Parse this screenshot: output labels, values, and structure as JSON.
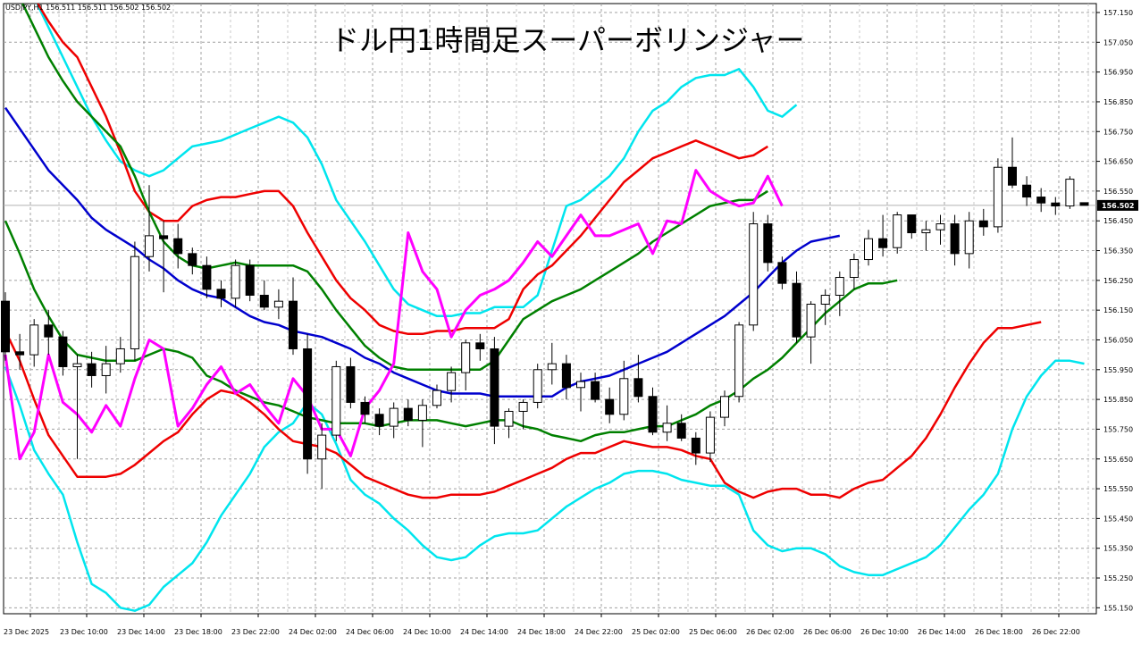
{
  "header": {
    "symbol_line": "USDJPY,H1  156.511 156.511 156.502 156.502"
  },
  "chart_data": {
    "type": "candlestick",
    "title": "ドル円1時間足スーパーボリンジャー",
    "symbol": "USDJPY",
    "timeframe": "H1",
    "current_price_label": "156.502",
    "ylim": [
      155.13,
      157.18
    ],
    "grid": true,
    "y_ticks": [
      "157.150",
      "157.050",
      "156.950",
      "156.850",
      "156.750",
      "156.650",
      "156.550",
      "156.450",
      "156.350",
      "156.250",
      "156.150",
      "156.050",
      "155.950",
      "155.850",
      "155.750",
      "155.650",
      "155.550",
      "155.450",
      "155.350",
      "155.250",
      "155.150"
    ],
    "x_tick_labels": [
      "23 Dec 2025",
      "23 Dec 10:00",
      "23 Dec 14:00",
      "23 Dec 18:00",
      "23 Dec 22:00",
      "24 Dec 02:00",
      "24 Dec 06:00",
      "24 Dec 10:00",
      "24 Dec 14:00",
      "24 Dec 18:00",
      "24 Dec 22:00",
      "25 Dec 02:00",
      "25 Dec 06:00",
      "26 Dec 02:00",
      "26 Dec 06:00",
      "26 Dec 10:00",
      "26 Dec 14:00",
      "26 Dec 18:00",
      "26 Dec 22:00"
    ],
    "candles": [
      {
        "o": 156.18,
        "h": 156.21,
        "l": 155.98,
        "c": 156.01
      },
      {
        "o": 156.01,
        "h": 156.07,
        "l": 155.95,
        "c": 156.0
      },
      {
        "o": 156.0,
        "h": 156.12,
        "l": 155.96,
        "c": 156.1
      },
      {
        "o": 156.1,
        "h": 156.15,
        "l": 156.0,
        "c": 156.06
      },
      {
        "o": 156.06,
        "h": 156.08,
        "l": 155.93,
        "c": 155.96
      },
      {
        "o": 155.96,
        "h": 156.0,
        "l": 155.65,
        "c": 155.97
      },
      {
        "o": 155.97,
        "h": 156.01,
        "l": 155.89,
        "c": 155.93
      },
      {
        "o": 155.93,
        "h": 156.03,
        "l": 155.87,
        "c": 155.97
      },
      {
        "o": 155.97,
        "h": 156.06,
        "l": 155.94,
        "c": 156.02
      },
      {
        "o": 156.02,
        "h": 156.38,
        "l": 155.98,
        "c": 156.33
      },
      {
        "o": 156.33,
        "h": 156.57,
        "l": 156.28,
        "c": 156.4
      },
      {
        "o": 156.4,
        "h": 156.45,
        "l": 156.21,
        "c": 156.39
      },
      {
        "o": 156.39,
        "h": 156.44,
        "l": 156.29,
        "c": 156.34
      },
      {
        "o": 156.34,
        "h": 156.36,
        "l": 156.27,
        "c": 156.3
      },
      {
        "o": 156.3,
        "h": 156.33,
        "l": 156.19,
        "c": 156.22
      },
      {
        "o": 156.22,
        "h": 156.25,
        "l": 156.16,
        "c": 156.19
      },
      {
        "o": 156.19,
        "h": 156.32,
        "l": 156.16,
        "c": 156.3
      },
      {
        "o": 156.3,
        "h": 156.32,
        "l": 156.18,
        "c": 156.2
      },
      {
        "o": 156.2,
        "h": 156.25,
        "l": 156.15,
        "c": 156.16
      },
      {
        "o": 156.16,
        "h": 156.22,
        "l": 156.12,
        "c": 156.18
      },
      {
        "o": 156.18,
        "h": 156.26,
        "l": 156.0,
        "c": 156.02
      },
      {
        "o": 156.02,
        "h": 156.07,
        "l": 155.6,
        "c": 155.65
      },
      {
        "o": 155.65,
        "h": 155.77,
        "l": 155.55,
        "c": 155.73
      },
      {
        "o": 155.73,
        "h": 155.98,
        "l": 155.71,
        "c": 155.96
      },
      {
        "o": 155.96,
        "h": 155.99,
        "l": 155.82,
        "c": 155.84
      },
      {
        "o": 155.84,
        "h": 155.86,
        "l": 155.77,
        "c": 155.8
      },
      {
        "o": 155.8,
        "h": 155.82,
        "l": 155.73,
        "c": 155.76
      },
      {
        "o": 155.76,
        "h": 155.84,
        "l": 155.72,
        "c": 155.82
      },
      {
        "o": 155.82,
        "h": 155.85,
        "l": 155.76,
        "c": 155.78
      },
      {
        "o": 155.78,
        "h": 155.85,
        "l": 155.69,
        "c": 155.83
      },
      {
        "o": 155.83,
        "h": 155.9,
        "l": 155.82,
        "c": 155.88
      },
      {
        "o": 155.88,
        "h": 155.96,
        "l": 155.84,
        "c": 155.94
      },
      {
        "o": 155.94,
        "h": 156.05,
        "l": 155.88,
        "c": 156.04
      },
      {
        "o": 156.04,
        "h": 156.07,
        "l": 155.98,
        "c": 156.02
      },
      {
        "o": 156.02,
        "h": 156.06,
        "l": 155.7,
        "c": 155.76
      },
      {
        "o": 155.76,
        "h": 155.82,
        "l": 155.72,
        "c": 155.81
      },
      {
        "o": 155.81,
        "h": 155.85,
        "l": 155.75,
        "c": 155.84
      },
      {
        "o": 155.84,
        "h": 155.97,
        "l": 155.82,
        "c": 155.95
      },
      {
        "o": 155.95,
        "h": 156.04,
        "l": 155.9,
        "c": 155.97
      },
      {
        "o": 155.97,
        "h": 156.0,
        "l": 155.85,
        "c": 155.89
      },
      {
        "o": 155.89,
        "h": 155.94,
        "l": 155.81,
        "c": 155.91
      },
      {
        "o": 155.91,
        "h": 155.94,
        "l": 155.84,
        "c": 155.85
      },
      {
        "o": 155.85,
        "h": 155.89,
        "l": 155.77,
        "c": 155.8
      },
      {
        "o": 155.8,
        "h": 155.98,
        "l": 155.78,
        "c": 155.92
      },
      {
        "o": 155.92,
        "h": 156.0,
        "l": 155.84,
        "c": 155.86
      },
      {
        "o": 155.86,
        "h": 155.89,
        "l": 155.73,
        "c": 155.74
      },
      {
        "o": 155.74,
        "h": 155.83,
        "l": 155.71,
        "c": 155.77
      },
      {
        "o": 155.77,
        "h": 155.8,
        "l": 155.71,
        "c": 155.72
      },
      {
        "o": 155.72,
        "h": 155.74,
        "l": 155.63,
        "c": 155.67
      },
      {
        "o": 155.67,
        "h": 155.81,
        "l": 155.64,
        "c": 155.79
      },
      {
        "o": 155.79,
        "h": 155.88,
        "l": 155.76,
        "c": 155.86
      },
      {
        "o": 155.86,
        "h": 156.11,
        "l": 155.84,
        "c": 156.1
      },
      {
        "o": 156.1,
        "h": 156.48,
        "l": 156.08,
        "c": 156.44
      },
      {
        "o": 156.44,
        "h": 156.47,
        "l": 156.28,
        "c": 156.31
      },
      {
        "o": 156.31,
        "h": 156.33,
        "l": 156.22,
        "c": 156.24
      },
      {
        "o": 156.24,
        "h": 156.28,
        "l": 156.04,
        "c": 156.06
      },
      {
        "o": 156.06,
        "h": 156.18,
        "l": 155.97,
        "c": 156.17
      },
      {
        "o": 156.17,
        "h": 156.22,
        "l": 156.1,
        "c": 156.2
      },
      {
        "o": 156.2,
        "h": 156.28,
        "l": 156.13,
        "c": 156.26
      },
      {
        "o": 156.26,
        "h": 156.34,
        "l": 156.22,
        "c": 156.32
      },
      {
        "o": 156.32,
        "h": 156.42,
        "l": 156.3,
        "c": 156.39
      },
      {
        "o": 156.39,
        "h": 156.47,
        "l": 156.33,
        "c": 156.36
      },
      {
        "o": 156.36,
        "h": 156.48,
        "l": 156.34,
        "c": 156.47
      },
      {
        "o": 156.47,
        "h": 156.47,
        "l": 156.39,
        "c": 156.41
      },
      {
        "o": 156.41,
        "h": 156.45,
        "l": 156.35,
        "c": 156.42
      },
      {
        "o": 156.42,
        "h": 156.47,
        "l": 156.37,
        "c": 156.44
      },
      {
        "o": 156.44,
        "h": 156.47,
        "l": 156.3,
        "c": 156.34
      },
      {
        "o": 156.34,
        "h": 156.48,
        "l": 156.29,
        "c": 156.45
      },
      {
        "o": 156.45,
        "h": 156.49,
        "l": 156.4,
        "c": 156.43
      },
      {
        "o": 156.43,
        "h": 156.66,
        "l": 156.41,
        "c": 156.63
      },
      {
        "o": 156.63,
        "h": 156.73,
        "l": 156.56,
        "c": 156.57
      },
      {
        "o": 156.57,
        "h": 156.6,
        "l": 156.5,
        "c": 156.53
      },
      {
        "o": 156.53,
        "h": 156.56,
        "l": 156.48,
        "c": 156.51
      },
      {
        "o": 156.51,
        "h": 156.53,
        "l": 156.47,
        "c": 156.5
      },
      {
        "o": 156.5,
        "h": 156.6,
        "l": 156.49,
        "c": 156.59
      },
      {
        "o": 156.511,
        "h": 156.511,
        "l": 156.502,
        "c": 156.502
      }
    ],
    "series": [
      {
        "name": "",
        "color": "#00e5ee",
        "x_start": 0,
        "values": [
          155.96,
          155.83,
          155.68,
          155.6,
          155.53,
          155.37,
          155.23,
          155.2,
          155.15,
          155.14,
          155.16,
          155.22,
          155.26,
          155.3,
          155.37,
          155.46,
          155.53,
          155.6,
          155.69,
          155.74,
          155.77,
          155.84,
          155.8,
          155.7,
          155.58,
          155.53,
          155.5,
          155.45,
          155.41,
          155.36,
          155.32,
          155.31,
          155.32,
          155.36,
          155.39,
          155.4,
          155.4,
          155.41,
          155.45,
          155.49,
          155.52,
          155.55,
          155.57,
          155.6,
          155.61,
          155.61,
          155.6,
          155.58,
          155.57,
          155.56,
          155.56,
          155.53,
          155.41,
          155.36,
          155.34,
          155.35,
          155.35,
          155.33,
          155.29,
          155.27,
          155.26,
          155.26,
          155.28,
          155.3,
          155.32,
          155.36,
          155.42,
          155.48,
          155.53,
          155.6,
          155.75,
          155.86,
          155.93,
          155.98,
          155.98,
          155.97
        ]
      },
      {
        "name": "",
        "color": "#ee0000",
        "x_start": 0,
        "values": [
          156.08,
          155.98,
          155.85,
          155.73,
          155.66,
          155.59,
          155.59,
          155.59,
          155.6,
          155.63,
          155.67,
          155.71,
          155.74,
          155.8,
          155.85,
          155.88,
          155.87,
          155.84,
          155.8,
          155.75,
          155.71,
          155.7,
          155.69,
          155.67,
          155.63,
          155.59,
          155.57,
          155.55,
          155.53,
          155.52,
          155.52,
          155.53,
          155.53,
          155.53,
          155.54,
          155.56,
          155.58,
          155.6,
          155.62,
          155.65,
          155.67,
          155.67,
          155.69,
          155.71,
          155.7,
          155.69,
          155.69,
          155.68,
          155.66,
          155.65,
          155.57,
          155.54,
          155.52,
          155.54,
          155.55,
          155.55,
          155.53,
          155.53,
          155.52,
          155.55,
          155.57,
          155.58,
          155.62,
          155.66,
          155.72,
          155.8,
          155.89,
          155.97,
          156.04,
          156.09,
          156.09,
          156.1,
          156.11
        ]
      },
      {
        "name": "",
        "color": "#008000",
        "x_start": 0,
        "values": [
          156.45,
          156.34,
          156.22,
          156.13,
          156.05,
          156.0,
          155.99,
          155.98,
          155.98,
          155.98,
          156.0,
          156.02,
          156.01,
          155.99,
          155.93,
          155.91,
          155.88,
          155.86,
          155.84,
          155.83,
          155.81,
          155.79,
          155.78,
          155.77,
          155.77,
          155.77,
          155.76,
          155.77,
          155.78,
          155.78,
          155.78,
          155.77,
          155.76,
          155.77,
          155.78,
          155.78,
          155.76,
          155.75,
          155.73,
          155.72,
          155.71,
          155.73,
          155.74,
          155.74,
          155.75,
          155.76,
          155.76,
          155.78,
          155.8,
          155.83,
          155.85,
          155.88,
          155.92,
          155.95,
          155.99,
          156.04,
          156.09,
          156.14,
          156.18,
          156.22,
          156.24,
          156.24,
          156.25
        ]
      },
      {
        "name": "",
        "color": "#0000cd",
        "x_start": 0,
        "values": [
          156.83,
          156.76,
          156.69,
          156.62,
          156.57,
          156.52,
          156.46,
          156.42,
          156.39,
          156.36,
          156.32,
          156.29,
          156.25,
          156.22,
          156.2,
          156.19,
          156.16,
          156.13,
          156.11,
          156.1,
          156.08,
          156.07,
          156.06,
          156.04,
          156.02,
          155.99,
          155.97,
          155.94,
          155.92,
          155.9,
          155.88,
          155.87,
          155.87,
          155.87,
          155.86,
          155.86,
          155.86,
          155.86,
          155.86,
          155.89,
          155.91,
          155.92,
          155.93,
          155.95,
          155.97,
          155.99,
          156.01,
          156.04,
          156.07,
          156.1,
          156.13,
          156.17,
          156.21,
          156.26,
          156.31,
          156.35,
          156.38,
          156.39,
          156.4
        ]
      },
      {
        "name": "",
        "color": "#ff00ff",
        "x_start": 0,
        "values": [
          156.0,
          155.65,
          155.74,
          156.0,
          155.84,
          155.8,
          155.74,
          155.83,
          155.76,
          155.92,
          156.05,
          156.02,
          155.76,
          155.82,
          155.9,
          155.96,
          155.87,
          155.9,
          155.83,
          155.77,
          155.92,
          155.86,
          155.75,
          155.75,
          155.66,
          155.82,
          155.88,
          155.97,
          156.41,
          156.28,
          156.22,
          156.06,
          156.15,
          156.2,
          156.22,
          156.25,
          156.31,
          156.38,
          156.33,
          156.4,
          156.47,
          156.4,
          156.4,
          156.42,
          156.44,
          156.34,
          156.45,
          156.44,
          156.62,
          156.55,
          156.52,
          156.5,
          156.51,
          156.6,
          156.5
        ]
      }
    ]
  }
}
